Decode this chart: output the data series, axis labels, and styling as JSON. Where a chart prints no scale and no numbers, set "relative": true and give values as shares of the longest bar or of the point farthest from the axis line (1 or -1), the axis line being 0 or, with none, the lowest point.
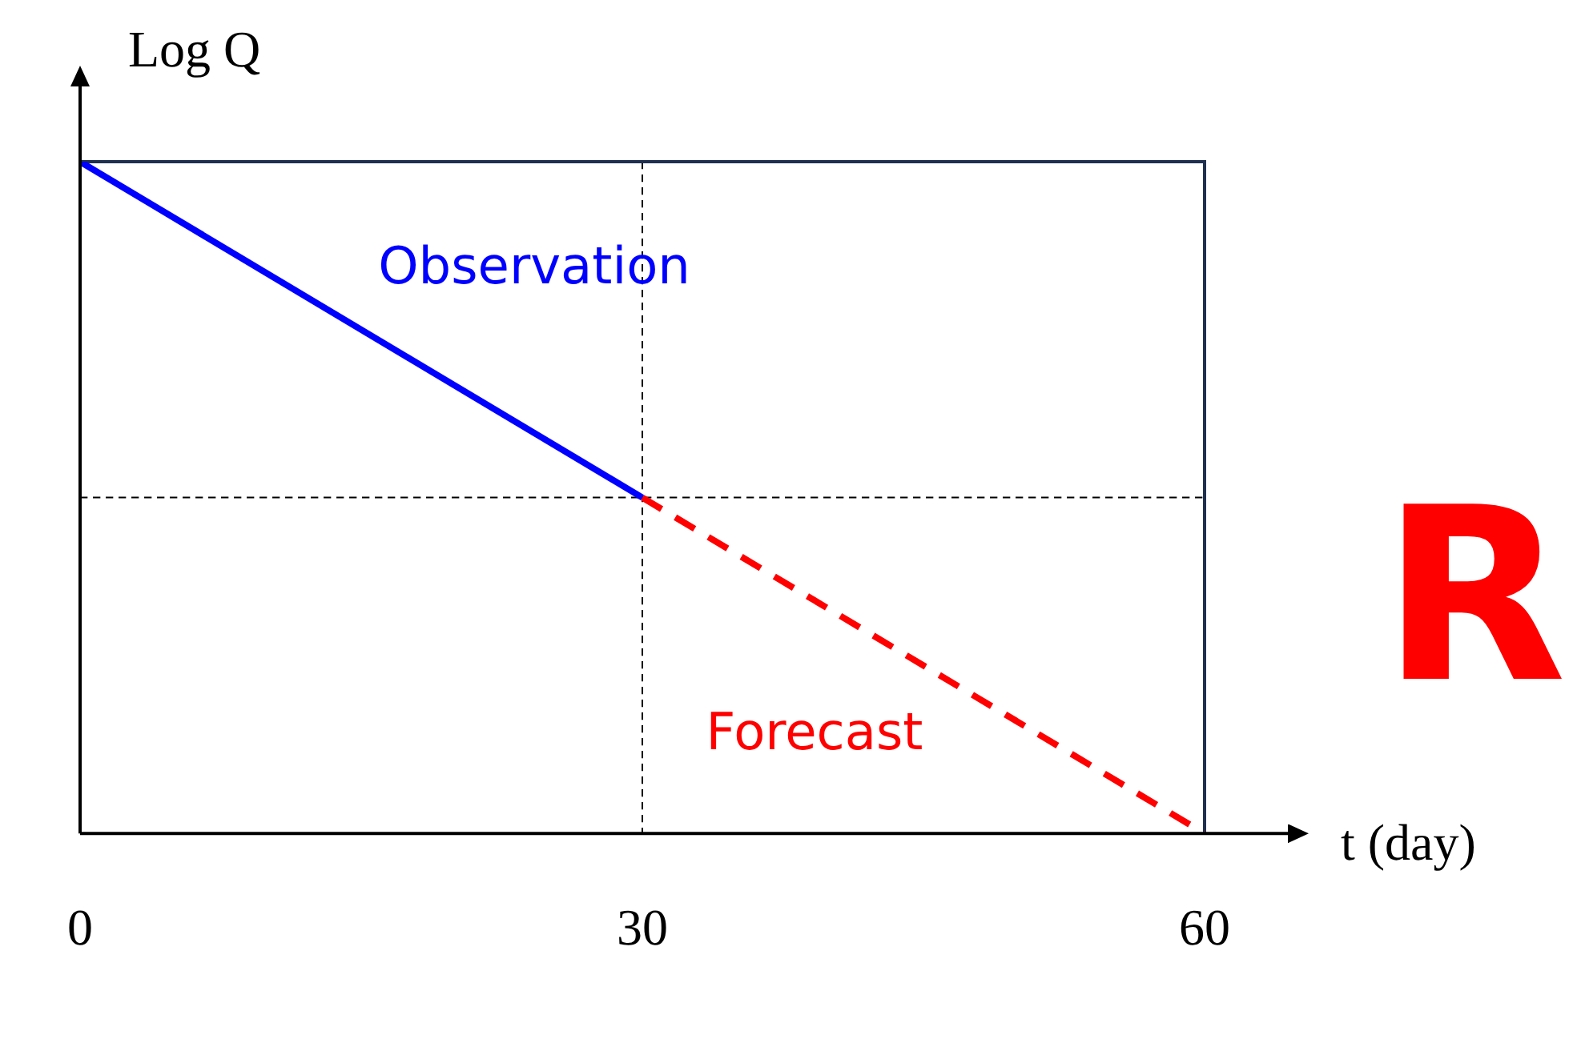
{
  "chart_data": {
    "type": "line",
    "relative": true,
    "xlabel": "t (day)",
    "ylabel": "Log Q",
    "xlim": [
      0,
      60
    ],
    "xticks": [
      0,
      30,
      60
    ],
    "legend": false,
    "grid": false,
    "series": [
      {
        "name": "Observation",
        "color": "#0000ff",
        "x": [
          0,
          30
        ],
        "values": [
          1,
          0.5
        ],
        "line_style": "solid"
      },
      {
        "name": "Forecast",
        "color": "#ff0000",
        "x": [
          30,
          60
        ],
        "values": [
          0.5,
          0
        ],
        "line_style": "dashed"
      }
    ],
    "ref_lines": [
      {
        "axis": "x",
        "value": 30,
        "color": "#000000",
        "line_style": "dashed"
      },
      {
        "axis": "y",
        "value": 0.5,
        "color": "#000000",
        "line_style": "dashed"
      }
    ],
    "annotations": [
      "R"
    ]
  }
}
